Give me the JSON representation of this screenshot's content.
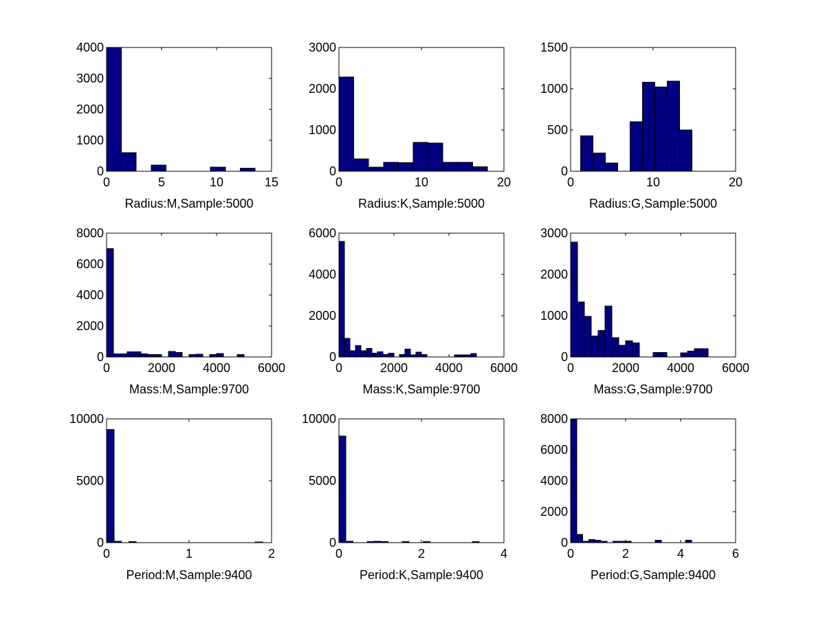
{
  "figure": {
    "background": "#ffffff",
    "bar_color": "#000080",
    "edge_color": "#000000"
  },
  "chart_data": [
    {
      "type": "bar",
      "xlabel": "Radius:M,Sample:5000",
      "xlim": [
        0,
        15
      ],
      "ylim": [
        0,
        4000
      ],
      "xticks": [
        0,
        5,
        10,
        15
      ],
      "yticks": [
        0,
        1000,
        2000,
        3000,
        4000
      ],
      "bin_edges": [
        0,
        1.35,
        2.7,
        4.05,
        5.4,
        6.75,
        8.1,
        9.45,
        10.8,
        12.15,
        13.5
      ],
      "values": [
        4000,
        600,
        0,
        200,
        0,
        0,
        0,
        130,
        0,
        100
      ]
    },
    {
      "type": "bar",
      "xlabel": "Radius:K,Sample:5000",
      "xlim": [
        0,
        20
      ],
      "ylim": [
        0,
        3000
      ],
      "xticks": [
        0,
        10,
        20
      ],
      "yticks": [
        0,
        1000,
        2000,
        3000
      ],
      "bin_edges": [
        0,
        1.8,
        3.6,
        5.4,
        7.2,
        9.0,
        10.8,
        12.6,
        14.4,
        16.2,
        18.0
      ],
      "values": [
        2280,
        300,
        100,
        220,
        210,
        700,
        680,
        220,
        220,
        110
      ]
    },
    {
      "type": "bar",
      "xlabel": "Radius:G,Sample:5000",
      "xlim": [
        0,
        20
      ],
      "ylim": [
        0,
        1500
      ],
      "xticks": [
        0,
        10,
        20
      ],
      "yticks": [
        0,
        500,
        1000,
        1500
      ],
      "bin_edges": [
        1.2,
        2.7,
        4.2,
        5.7,
        7.2,
        8.7,
        10.2,
        11.7,
        13.2,
        14.7,
        16.2
      ],
      "values": [
        430,
        220,
        100,
        0,
        600,
        1080,
        1020,
        1090,
        500,
        0
      ]
    },
    {
      "type": "bar",
      "xlabel": "Mass:M,Sample:9700",
      "xlim": [
        0,
        6000
      ],
      "ylim": [
        0,
        8000
      ],
      "xticks": [
        0,
        2000,
        4000,
        6000
      ],
      "yticks": [
        0,
        2000,
        4000,
        6000,
        8000
      ],
      "bin_edges": [
        0,
        250,
        500,
        750,
        1000,
        1250,
        1500,
        1750,
        2000,
        2250,
        2500,
        2750,
        3000,
        3250,
        3500,
        3750,
        4000,
        4250,
        4500,
        4750,
        5000
      ],
      "values": [
        7000,
        200,
        200,
        330,
        330,
        200,
        150,
        150,
        0,
        350,
        300,
        0,
        150,
        180,
        0,
        150,
        230,
        0,
        0,
        160
      ]
    },
    {
      "type": "bar",
      "xlabel": "Mass:K,Sample:9700",
      "xlim": [
        0,
        6000
      ],
      "ylim": [
        0,
        6000
      ],
      "xticks": [
        0,
        2000,
        4000,
        6000
      ],
      "yticks": [
        0,
        2000,
        4000,
        6000
      ],
      "bin_edges": [
        0,
        200,
        400,
        600,
        800,
        1000,
        1200,
        1400,
        1600,
        1800,
        2000,
        2200,
        2400,
        2600,
        2800,
        3000,
        3200,
        3400,
        3600,
        3800,
        4000,
        4200,
        4400,
        4600,
        4800,
        5000
      ],
      "values": [
        5600,
        900,
        300,
        550,
        300,
        420,
        180,
        250,
        120,
        180,
        0,
        120,
        380,
        100,
        230,
        120,
        0,
        0,
        0,
        0,
        0,
        100,
        100,
        100,
        160
      ]
    },
    {
      "type": "bar",
      "xlabel": "Mass:G,Sample:9700",
      "xlim": [
        0,
        6000
      ],
      "ylim": [
        0,
        3000
      ],
      "xticks": [
        0,
        2000,
        4000,
        6000
      ],
      "yticks": [
        0,
        1000,
        2000,
        3000
      ],
      "bin_edges": [
        0,
        250,
        500,
        750,
        1000,
        1250,
        1500,
        1750,
        2000,
        2250,
        2500,
        2750,
        3000,
        3250,
        3500,
        3750,
        4000,
        4250,
        4500,
        4750,
        5000
      ],
      "values": [
        2780,
        1330,
        980,
        510,
        640,
        1230,
        470,
        280,
        390,
        340,
        0,
        0,
        110,
        110,
        0,
        0,
        100,
        140,
        200,
        200
      ]
    },
    {
      "type": "bar",
      "xlabel": "Period:M,Sample:9400",
      "xlim": [
        0,
        2
      ],
      "ylim": [
        0,
        10000
      ],
      "xticks": [
        0,
        1,
        2
      ],
      "yticks": [
        0,
        5000,
        10000
      ],
      "bin_edges": [
        0,
        0.09,
        0.18,
        0.27,
        0.36,
        0.45,
        0.54,
        0.63,
        0.72,
        0.81,
        0.9,
        0.99,
        1.08,
        1.17,
        1.26,
        1.35,
        1.44,
        1.53,
        1.62,
        1.71,
        1.8,
        1.89
      ],
      "values": [
        9150,
        100,
        0,
        80,
        0,
        0,
        0,
        0,
        0,
        0,
        0,
        0,
        0,
        0,
        0,
        0,
        0,
        0,
        0,
        0,
        60
      ]
    },
    {
      "type": "bar",
      "xlabel": "Period:K,Sample:9400",
      "xlim": [
        0,
        4
      ],
      "ylim": [
        0,
        10000
      ],
      "xticks": [
        0,
        2,
        4
      ],
      "yticks": [
        0,
        5000,
        10000
      ],
      "bin_edges": [
        0,
        0.17,
        0.34,
        0.51,
        0.68,
        0.85,
        1.02,
        1.19,
        1.36,
        1.53,
        1.7,
        1.87,
        2.04,
        2.21,
        2.38,
        2.55,
        2.72,
        2.89,
        3.06,
        3.23,
        3.4
      ],
      "values": [
        8600,
        100,
        0,
        0,
        80,
        100,
        90,
        0,
        0,
        80,
        0,
        0,
        90,
        0,
        0,
        0,
        0,
        0,
        0,
        80
      ]
    },
    {
      "type": "bar",
      "xlabel": "Period:G,Sample:9400",
      "xlim": [
        0,
        6
      ],
      "ylim": [
        0,
        8000
      ],
      "xticks": [
        0,
        2,
        4,
        6
      ],
      "yticks": [
        0,
        2000,
        4000,
        6000,
        8000
      ],
      "bin_edges": [
        0,
        0.22,
        0.44,
        0.66,
        0.88,
        1.1,
        1.32,
        1.54,
        1.76,
        1.98,
        2.2,
        2.42,
        2.64,
        2.86,
        3.08,
        3.3,
        3.52,
        3.74,
        3.96,
        4.18,
        4.4,
        4.62
      ],
      "values": [
        7950,
        530,
        100,
        200,
        150,
        100,
        0,
        100,
        100,
        100,
        0,
        0,
        0,
        0,
        150,
        0,
        0,
        0,
        0,
        150,
        0
      ]
    }
  ]
}
